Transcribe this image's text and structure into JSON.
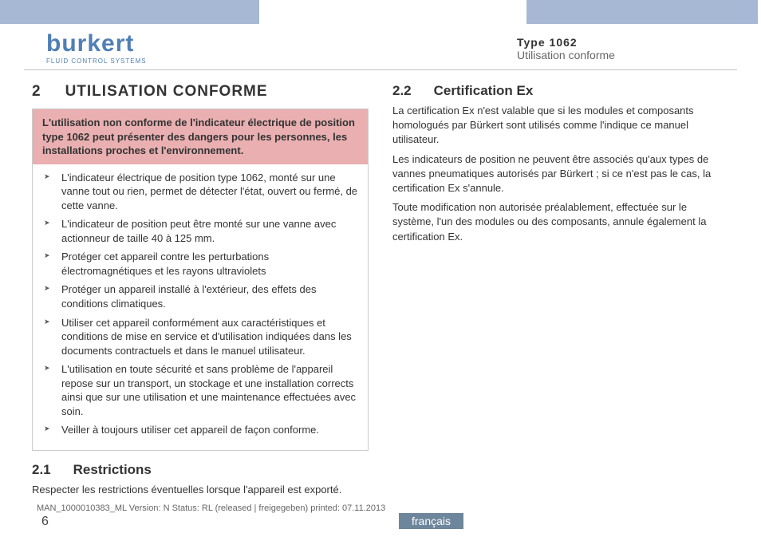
{
  "header": {
    "logo_word": "burkert",
    "logo_sub": "FLUID CONTROL SYSTEMS",
    "type_label": "Type 1062",
    "type_sub": "Utilisation conforme"
  },
  "left": {
    "num": "2",
    "title": "UTILISATION CONFORME",
    "warn_head": "L'utilisation non conforme de l'indicateur électrique de position type 1062 peut présenter des dangers pour les personnes, les installations proches et l'environnement.",
    "bullets": [
      "L'indicateur électrique de position type 1062, monté sur une vanne tout ou rien, permet de détecter l'état, ouvert ou fermé, de cette vanne.",
      "L'indicateur de position peut être monté sur une vanne avec actionneur de taille 40 à 125 mm.",
      "Protéger cet appareil contre les perturbations électromagnétiques et les rayons ultraviolets",
      "Protéger un appareil installé à l'extérieur, des effets des conditions climatiques.",
      "Utiliser cet appareil conformément aux caractéristiques et conditions de mise en service et d'utilisation indiquées dans les documents contractuels et dans le manuel utilisateur.",
      "L'utilisation en toute sécurité et sans problème de l'appareil repose sur un transport, un stockage et une installation corrects ainsi que sur une utilisation et une maintenance effectuées avec soin.",
      "Veiller à toujours utiliser cet appareil de façon conforme."
    ],
    "sub_num": "2.1",
    "sub_title": "Restrictions",
    "sub_text": "Respecter les restrictions éventuelles lorsque l'appareil est exporté."
  },
  "right": {
    "sub_num": "2.2",
    "sub_title": "Certification Ex",
    "paras": [
      "La certification Ex n'est valable que si les modules et composants homologués par Bürkert sont utilisés comme l'indique ce manuel utilisateur.",
      "Les indicateurs de position ne peuvent être associés qu'aux types de vannes pneumatiques autorisés par Bürkert ; si ce n'est pas le cas, la certification Ex s'annule.",
      "Toute modification non autorisée préalablement, effectuée sur le système, l'un des modules ou des composants, annule également la certification Ex."
    ]
  },
  "footer": {
    "meta": "MAN_1000010383_ML  Version: N Status: RL (released | freigegeben)  printed: 07.11.2013",
    "page": "6",
    "lang": "français"
  },
  "colors": {
    "bar": "#a6b8d4",
    "warn_bg": "#e9afb1",
    "logo": "#4f7fb5",
    "lang_tab": "#6d869b"
  }
}
